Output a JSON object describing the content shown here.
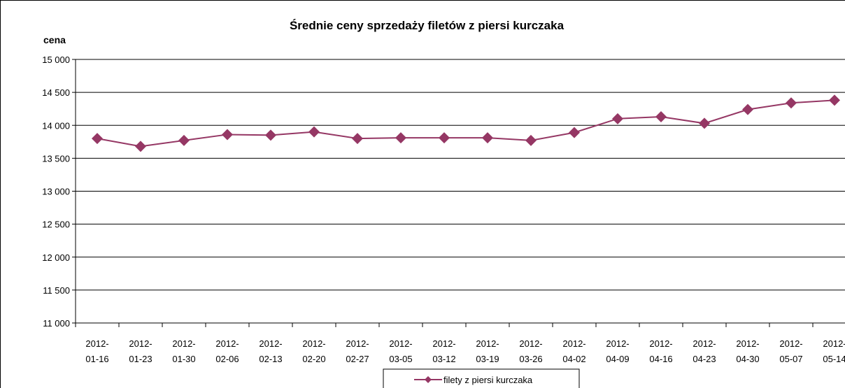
{
  "chart_data": {
    "type": "line",
    "title": "Średnie ceny sprzedaży filetów z piersi kurczaka",
    "y_label": "cena",
    "categories": [
      "2012-01-16",
      "2012-01-23",
      "2012-01-30",
      "2012-02-06",
      "2012-02-13",
      "2012-02-20",
      "2012-02-27",
      "2012-03-05",
      "2012-03-12",
      "2012-03-19",
      "2012-03-26",
      "2012-04-02",
      "2012-04-09",
      "2012-04-16",
      "2012-04-23",
      "2012-04-30",
      "2012-05-07",
      "2012-05-14"
    ],
    "series": [
      {
        "name": "filety z piersi kurczaka",
        "color": "#953764",
        "values": [
          13800,
          13680,
          13770,
          13860,
          13850,
          13900,
          13800,
          13810,
          13810,
          13810,
          13770,
          13890,
          14100,
          14130,
          14030,
          14240,
          14340,
          14380
        ]
      }
    ],
    "ylim": [
      11000,
      15000
    ],
    "yticks": [
      {
        "value": 11000,
        "label": "11 000"
      },
      {
        "value": 11500,
        "label": "11 500"
      },
      {
        "value": 12000,
        "label": "12 000"
      },
      {
        "value": 12500,
        "label": "12 500"
      },
      {
        "value": 13000,
        "label": "13 000"
      },
      {
        "value": 13500,
        "label": "13 500"
      },
      {
        "value": 14000,
        "label": "14 000"
      },
      {
        "value": 14500,
        "label": "14 500"
      },
      {
        "value": 15000,
        "label": "15 000"
      }
    ],
    "grid": true,
    "legend": "bottom"
  }
}
